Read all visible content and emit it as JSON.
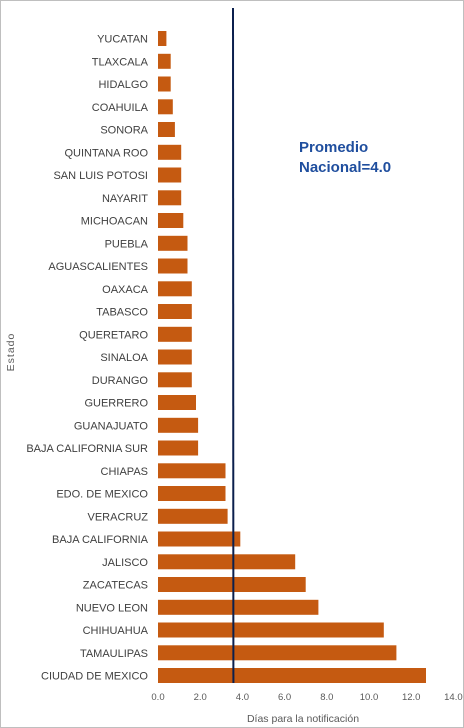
{
  "chart_data": {
    "type": "bar",
    "orientation": "horizontal",
    "categories": [
      "YUCATAN",
      "TLAXCALA",
      "HIDALGO",
      "COAHUILA",
      "SONORA",
      "QUINTANA ROO",
      "SAN LUIS POTOSI",
      "NAYARIT",
      "MICHOACAN",
      "PUEBLA",
      "AGUASCALIENTES",
      "OAXACA",
      "TABASCO",
      "QUERETARO",
      "SINALOA",
      "DURANGO",
      "GUERRERO",
      "GUANAJUATO",
      "BAJA CALIFORNIA SUR",
      "CHIAPAS",
      "EDO. DE MEXICO",
      "VERACRUZ",
      "BAJA CALIFORNIA",
      "JALISCO",
      "ZACATECAS",
      "NUEVO LEON",
      "CHIHUAHUA",
      "TAMAULIPAS",
      "CIUDAD DE MEXICO"
    ],
    "values": [
      0.4,
      0.6,
      0.6,
      0.7,
      0.8,
      1.1,
      1.1,
      1.1,
      1.2,
      1.4,
      1.4,
      1.6,
      1.6,
      1.6,
      1.6,
      1.6,
      1.8,
      1.9,
      1.9,
      3.2,
      3.2,
      3.3,
      3.9,
      6.5,
      7.0,
      7.6,
      10.7,
      11.3,
      12.7
    ],
    "xlabel": "Días para la notificación",
    "ylabel": "Estado",
    "xticks": [
      "0.0",
      "2.0",
      "4.0",
      "6.0",
      "8.0",
      "10.0",
      "12.0",
      "14.0"
    ],
    "xlim": [
      0,
      14
    ],
    "reference_line": {
      "value": 4.0,
      "label_line1": "Promedio",
      "label_line2": "Nacional=4.0"
    },
    "grid": false,
    "bar_color": "#c55a11",
    "line_color": "#0b1f4d",
    "annotation_color": "#1f4e9e"
  }
}
